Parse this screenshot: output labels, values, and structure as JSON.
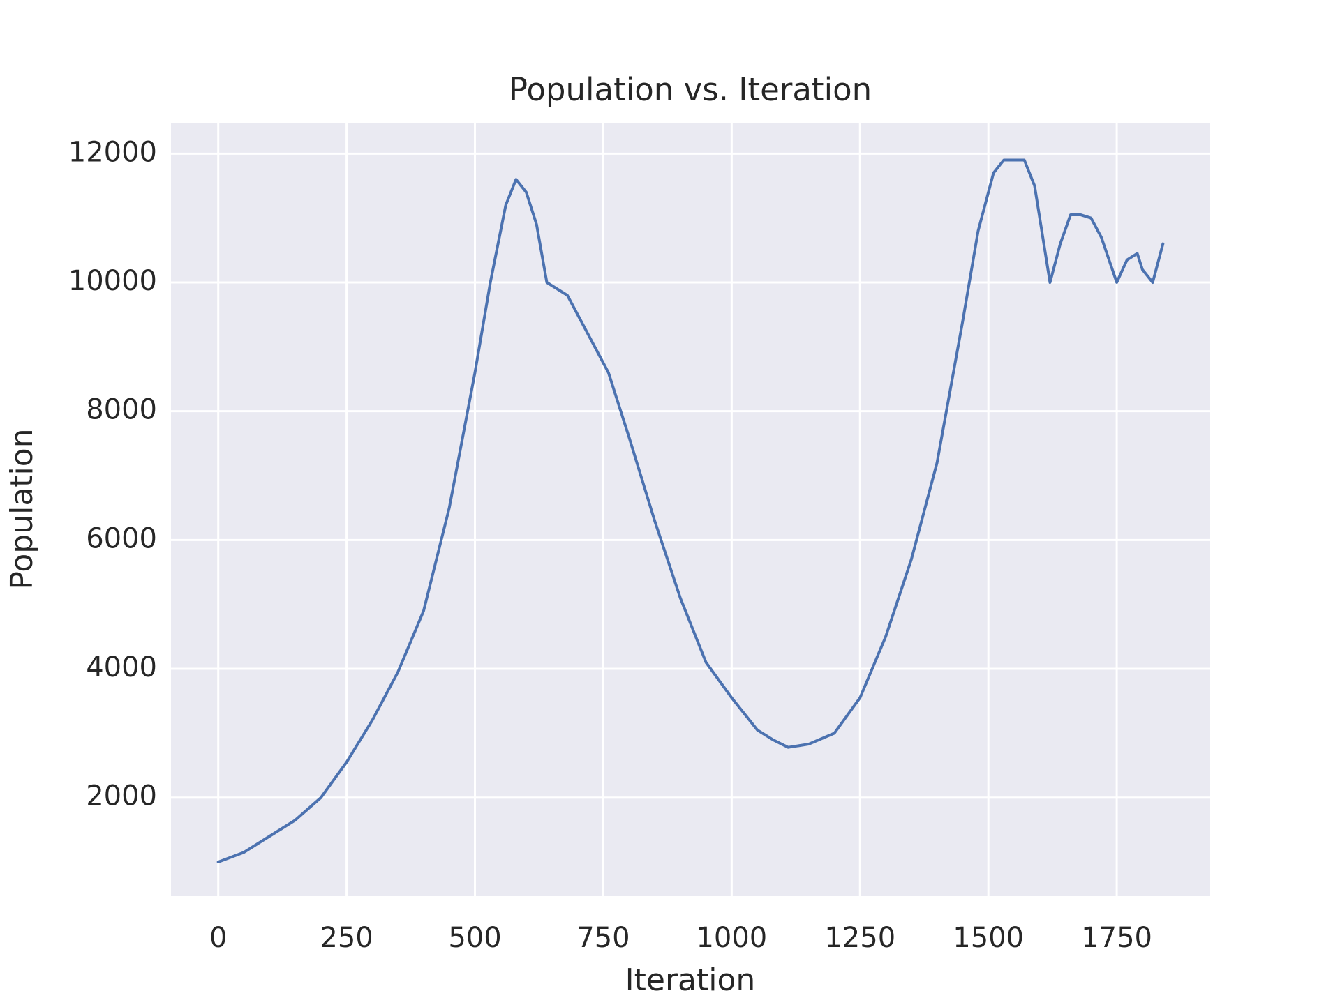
{
  "chart_data": {
    "type": "line",
    "title": "Population vs. Iteration",
    "x_label": "Iteration",
    "y_label": "Population",
    "x": [
      0,
      50,
      100,
      150,
      200,
      250,
      300,
      350,
      400,
      450,
      500,
      530,
      560,
      580,
      600,
      620,
      640,
      680,
      720,
      760,
      800,
      850,
      900,
      950,
      1000,
      1050,
      1080,
      1110,
      1150,
      1200,
      1250,
      1300,
      1350,
      1400,
      1450,
      1480,
      1510,
      1530,
      1570,
      1590,
      1610,
      1620,
      1640,
      1660,
      1680,
      1700,
      1720,
      1750,
      1770,
      1790,
      1800,
      1820,
      1840
    ],
    "values": [
      1000,
      1150,
      1400,
      1650,
      2000,
      2550,
      3200,
      3950,
      4900,
      6500,
      8600,
      10000,
      11200,
      11600,
      11400,
      10900,
      10000,
      9800,
      9200,
      8600,
      7600,
      6300,
      5100,
      4100,
      3550,
      3050,
      2900,
      2780,
      2830,
      3000,
      3550,
      4500,
      5700,
      7200,
      9400,
      10800,
      11700,
      11900,
      11900,
      11500,
      10500,
      10000,
      10600,
      11050,
      11050,
      11000,
      10700,
      10000,
      10350,
      10450,
      10200,
      10000,
      10600
    ],
    "color": "#4c72b0",
    "xlim": [
      -92,
      1932
    ],
    "xticks": [
      0,
      250,
      500,
      750,
      1000,
      1250,
      1500,
      1750
    ],
    "ylim": [
      470,
      12480
    ],
    "yticks": [
      2000,
      4000,
      6000,
      8000,
      10000,
      12000
    ],
    "grid": true
  }
}
